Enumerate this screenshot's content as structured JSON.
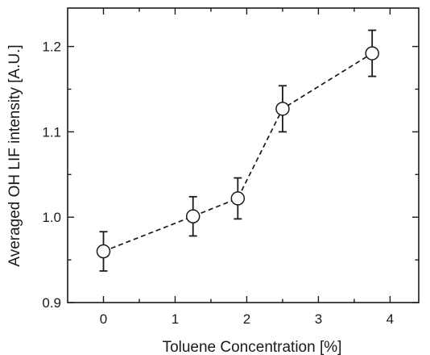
{
  "chart_data": {
    "type": "line",
    "xlabel": "Toluene Concentration [%]",
    "ylabel": "Averaged OH LIF intensity [A.U.]",
    "xlim": [
      -0.5,
      4.4
    ],
    "ylim": [
      0.9,
      1.245
    ],
    "x_ticks": [
      0,
      1,
      2,
      3,
      4
    ],
    "y_ticks": [
      0.9,
      1.0,
      1.1,
      1.2
    ],
    "x_tick_labels": [
      "0",
      "1",
      "2",
      "3",
      "4"
    ],
    "y_tick_labels": [
      "0.9",
      "1.0",
      "1.1",
      "1.2"
    ],
    "grid": false,
    "legend": "none",
    "line_style": "dashed",
    "marker": "open-circle",
    "series": [
      {
        "x": [
          0,
          1.25,
          1.875,
          2.5,
          3.75
        ],
        "y": [
          0.96,
          1.001,
          1.022,
          1.127,
          1.192
        ],
        "error": [
          0.023,
          0.023,
          0.024,
          0.027,
          0.027
        ]
      }
    ]
  }
}
